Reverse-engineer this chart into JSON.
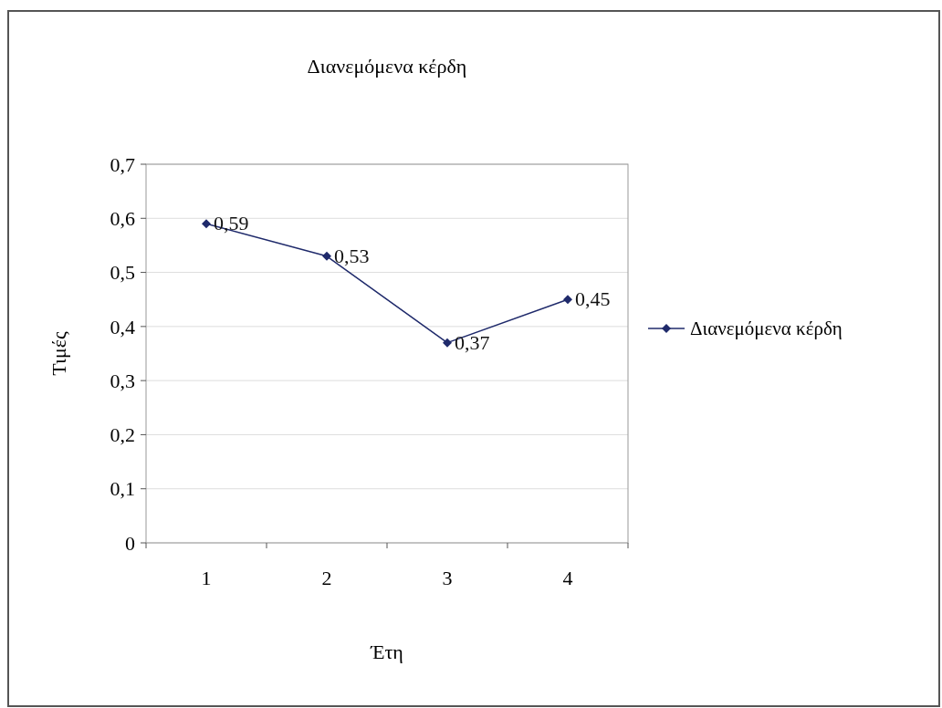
{
  "chart_data": {
    "type": "line",
    "title": "Διανεμόμενα κέρδη",
    "xlabel": "Έτη",
    "ylabel": "Τιμές",
    "categories": [
      "1",
      "2",
      "3",
      "4"
    ],
    "series": [
      {
        "name": "Διανεμόμενα κέρδη",
        "color": "#1f2a6b",
        "values": [
          0.59,
          0.53,
          0.37,
          0.45
        ],
        "value_labels": [
          "0,59",
          "0,53",
          "0,37",
          "0,45"
        ]
      }
    ],
    "ylim": [
      0,
      0.7
    ],
    "yticks": [
      0,
      {
        "value": 0.1,
        "label": "0,1"
      },
      {
        "value": 0.2,
        "label": "0,2"
      },
      {
        "value": 0.3,
        "label": "0,3"
      },
      {
        "value": 0.4,
        "label": "0,4"
      },
      {
        "value": 0.5,
        "label": "0,5"
      },
      {
        "value": 0.6,
        "label": "0,6"
      },
      {
        "value": 0.7,
        "label": "0,7"
      }
    ],
    "grid": "y",
    "legend": "right",
    "marker": "diamond",
    "line_style": "solid"
  }
}
